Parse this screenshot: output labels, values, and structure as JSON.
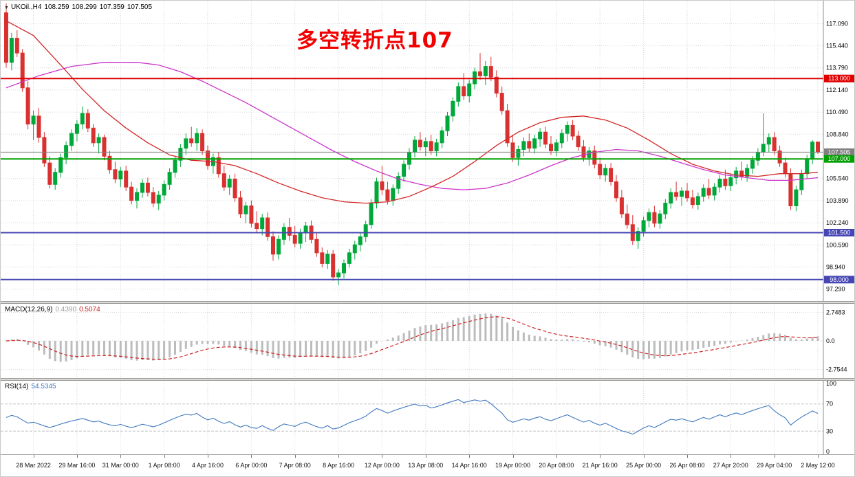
{
  "header": {
    "symbol": "UKOil.,H4",
    "open": "108.259",
    "high": "108.299",
    "low": "107.359",
    "close": "107.505"
  },
  "annotation": {
    "text": "多空转折点107",
    "color": "#f20000"
  },
  "colors": {
    "bull": "#00a83a",
    "bear": "#d93030",
    "grid": "#d6d6d6",
    "scale_line": "#8c8c8c",
    "macd_hist": "#bcbcbc",
    "macd_signal": "#d02020",
    "rsi_line": "#3e78be",
    "level_dash": "#c0c0c0"
  },
  "chart_data": {
    "type": "candlestick",
    "symbol": "UKOil.",
    "timeframe": "H4",
    "current_bar": {
      "open": 108.259,
      "high": 108.299,
      "low": 107.359,
      "close": 107.505
    },
    "price_range": [
      96.4,
      118.8
    ],
    "price_ticks": [
      "117.090",
      "115.440",
      "113.790",
      "112.140",
      "110.490",
      "108.840",
      "105.540",
      "103.890",
      "102.240",
      "100.590",
      "98.940",
      "97.290"
    ],
    "time_ticks": {
      "labels": [
        "28 Mar 2022",
        "29 Mar 16:00",
        "31 Mar 00:00",
        "1 Apr 08:00",
        "4 Apr 16:00",
        "6 Apr 00:00",
        "7 Apr 08:00",
        "8 Apr 16:00",
        "12 Apr 00:00",
        "13 Apr 08:00",
        "14 Apr 16:00",
        "19 Apr 00:00",
        "20 Apr 08:00",
        "21 Apr 16:00",
        "25 Apr 00:00",
        "26 Apr 08:00",
        "27 Apr 20:00",
        "29 Apr 04:00",
        "2 May 12:00"
      ],
      "candle_indices": [
        5,
        13,
        21,
        29,
        37,
        45,
        53,
        61,
        69,
        77,
        85,
        93,
        101,
        109,
        117,
        125,
        133,
        141,
        149
      ]
    },
    "horizontal_lines": [
      {
        "label": "113.000",
        "value": 113.0,
        "color": "#e00000",
        "line_width": 2
      },
      {
        "label": "101.500",
        "value": 101.5,
        "color": "#4646b4",
        "line_width": 2
      },
      {
        "label": "98.000",
        "value": 98.0,
        "color": "#4646b4",
        "line_width": 2
      },
      {
        "label": "107.505",
        "value": 107.505,
        "color": "#808080",
        "line_width": 1
      },
      {
        "label": "107.000",
        "value": 107.0,
        "color": "#00a000",
        "line_width": 2
      }
    ],
    "candles": [
      [
        117.9,
        118.6,
        113.8,
        114.2
      ],
      [
        114.2,
        116.4,
        113.6,
        116.0
      ],
      [
        116.0,
        116.6,
        114.6,
        114.9
      ],
      [
        114.9,
        115.2,
        112.0,
        112.3
      ],
      [
        112.3,
        112.8,
        109.2,
        109.6
      ],
      [
        109.6,
        110.6,
        108.4,
        110.2
      ],
      [
        110.2,
        110.8,
        108.2,
        108.6
      ],
      [
        108.6,
        109.0,
        106.4,
        106.7
      ],
      [
        106.7,
        107.2,
        104.8,
        105.1
      ],
      [
        105.1,
        106.3,
        104.7,
        106.0
      ],
      [
        106.0,
        107.4,
        105.6,
        107.1
      ],
      [
        107.1,
        108.3,
        106.6,
        108.0
      ],
      [
        108.0,
        109.2,
        107.6,
        108.9
      ],
      [
        108.9,
        109.9,
        108.3,
        109.6
      ],
      [
        109.6,
        110.9,
        109.2,
        110.4
      ],
      [
        110.4,
        110.7,
        109.0,
        109.3
      ],
      [
        109.3,
        109.6,
        107.9,
        108.2
      ],
      [
        108.2,
        108.9,
        107.4,
        108.6
      ],
      [
        108.6,
        108.8,
        106.9,
        107.2
      ],
      [
        107.2,
        107.6,
        105.9,
        106.2
      ],
      [
        106.2,
        106.8,
        105.2,
        105.5
      ],
      [
        105.5,
        106.4,
        104.9,
        106.1
      ],
      [
        106.1,
        106.5,
        104.6,
        104.9
      ],
      [
        104.9,
        105.3,
        103.6,
        103.9
      ],
      [
        103.9,
        104.8,
        103.3,
        104.5
      ],
      [
        104.5,
        105.5,
        104.1,
        105.2
      ],
      [
        105.2,
        105.6,
        104.2,
        104.5
      ],
      [
        104.5,
        104.9,
        103.4,
        103.7
      ],
      [
        103.7,
        104.6,
        103.2,
        104.3
      ],
      [
        104.3,
        105.4,
        103.9,
        105.1
      ],
      [
        105.1,
        106.3,
        104.7,
        106.0
      ],
      [
        106.0,
        107.2,
        105.6,
        106.9
      ],
      [
        106.9,
        108.1,
        106.4,
        107.8
      ],
      [
        107.8,
        108.9,
        107.3,
        108.5
      ],
      [
        108.5,
        109.4,
        107.9,
        108.2
      ],
      [
        108.2,
        109.3,
        107.6,
        108.9
      ],
      [
        108.9,
        109.2,
        107.3,
        107.6
      ],
      [
        107.6,
        108.0,
        106.2,
        106.5
      ],
      [
        106.5,
        107.4,
        105.9,
        107.1
      ],
      [
        107.1,
        107.5,
        105.6,
        105.9
      ],
      [
        105.9,
        106.5,
        104.6,
        104.9
      ],
      [
        104.9,
        105.8,
        104.3,
        105.5
      ],
      [
        105.5,
        105.9,
        103.8,
        104.1
      ],
      [
        104.1,
        104.6,
        102.6,
        102.9
      ],
      [
        102.9,
        103.8,
        102.2,
        103.5
      ],
      [
        103.5,
        103.9,
        101.9,
        102.2
      ],
      [
        102.2,
        103.1,
        101.5,
        101.8
      ],
      [
        101.8,
        102.9,
        101.3,
        102.6
      ],
      [
        102.6,
        103.0,
        100.9,
        101.2
      ],
      [
        101.2,
        101.6,
        99.4,
        99.9
      ],
      [
        99.9,
        101.3,
        99.5,
        101.0
      ],
      [
        101.0,
        102.2,
        100.6,
        101.9
      ],
      [
        101.9,
        102.6,
        100.9,
        101.3
      ],
      [
        101.3,
        102.0,
        100.4,
        100.7
      ],
      [
        100.7,
        101.8,
        100.3,
        101.5
      ],
      [
        101.5,
        102.3,
        100.8,
        102.0
      ],
      [
        102.0,
        102.4,
        100.7,
        101.0
      ],
      [
        101.0,
        101.5,
        99.7,
        100.0
      ],
      [
        100.0,
        100.4,
        98.9,
        99.2
      ],
      [
        99.2,
        100.2,
        98.8,
        99.9
      ],
      [
        99.9,
        100.2,
        97.9,
        98.2
      ],
      [
        98.2,
        98.8,
        97.6,
        98.5
      ],
      [
        98.5,
        99.5,
        98.1,
        99.2
      ],
      [
        99.2,
        100.3,
        98.9,
        100.0
      ],
      [
        100.0,
        100.9,
        99.5,
        100.6
      ],
      [
        100.6,
        101.5,
        100.1,
        101.2
      ],
      [
        101.2,
        102.4,
        100.8,
        102.1
      ],
      [
        102.1,
        104.0,
        101.8,
        103.7
      ],
      [
        103.7,
        105.6,
        103.3,
        105.3
      ],
      [
        105.3,
        106.5,
        104.3,
        104.7
      ],
      [
        104.7,
        105.3,
        103.6,
        103.9
      ],
      [
        103.9,
        105.1,
        103.5,
        104.8
      ],
      [
        104.8,
        106.0,
        104.4,
        105.7
      ],
      [
        105.7,
        106.9,
        105.3,
        106.6
      ],
      [
        106.6,
        107.8,
        106.2,
        107.5
      ],
      [
        107.5,
        108.7,
        107.1,
        108.4
      ],
      [
        108.4,
        109.0,
        107.6,
        107.9
      ],
      [
        107.9,
        108.6,
        107.2,
        108.3
      ],
      [
        108.3,
        108.8,
        107.3,
        107.6
      ],
      [
        107.6,
        108.5,
        107.2,
        108.2
      ],
      [
        108.2,
        109.4,
        107.8,
        109.1
      ],
      [
        109.1,
        110.5,
        108.7,
        110.2
      ],
      [
        110.2,
        111.6,
        109.8,
        111.3
      ],
      [
        111.3,
        112.7,
        110.9,
        112.4
      ],
      [
        112.4,
        113.4,
        111.4,
        111.7
      ],
      [
        111.7,
        112.9,
        111.2,
        112.6
      ],
      [
        112.6,
        113.8,
        112.2,
        113.5
      ],
      [
        113.5,
        114.9,
        112.9,
        113.2
      ],
      [
        113.2,
        114.3,
        112.5,
        113.9
      ],
      [
        113.9,
        114.6,
        112.8,
        113.1
      ],
      [
        113.1,
        113.6,
        111.6,
        111.9
      ],
      [
        111.9,
        112.4,
        110.3,
        110.6
      ],
      [
        110.6,
        111.1,
        107.9,
        108.2
      ],
      [
        108.2,
        108.8,
        106.8,
        107.1
      ],
      [
        107.1,
        108.0,
        106.5,
        107.7
      ],
      [
        107.7,
        108.6,
        107.2,
        108.3
      ],
      [
        108.3,
        108.9,
        107.5,
        107.8
      ],
      [
        107.8,
        108.8,
        107.4,
        108.5
      ],
      [
        108.5,
        109.3,
        107.9,
        109.0
      ],
      [
        109.0,
        109.4,
        107.8,
        108.1
      ],
      [
        108.1,
        108.7,
        107.3,
        107.6
      ],
      [
        107.6,
        108.5,
        107.2,
        108.2
      ],
      [
        108.2,
        109.2,
        107.8,
        108.9
      ],
      [
        108.9,
        109.8,
        108.3,
        109.5
      ],
      [
        109.5,
        109.9,
        108.4,
        108.7
      ],
      [
        108.7,
        109.1,
        107.6,
        107.9
      ],
      [
        107.9,
        108.4,
        106.8,
        107.1
      ],
      [
        107.1,
        107.9,
        106.5,
        107.6
      ],
      [
        107.6,
        108.0,
        106.3,
        106.6
      ],
      [
        106.6,
        107.1,
        105.5,
        105.8
      ],
      [
        105.8,
        106.6,
        105.3,
        106.3
      ],
      [
        106.3,
        106.7,
        105.0,
        105.3
      ],
      [
        105.3,
        105.8,
        103.8,
        104.1
      ],
      [
        104.1,
        104.7,
        102.6,
        102.9
      ],
      [
        102.9,
        103.6,
        101.8,
        102.1
      ],
      [
        102.1,
        102.8,
        100.6,
        100.9
      ],
      [
        100.9,
        101.9,
        100.3,
        101.6
      ],
      [
        101.6,
        102.7,
        101.2,
        102.4
      ],
      [
        102.4,
        103.3,
        101.9,
        103.0
      ],
      [
        103.0,
        103.5,
        101.9,
        102.2
      ],
      [
        102.2,
        103.2,
        101.8,
        102.9
      ],
      [
        102.9,
        104.0,
        102.5,
        103.7
      ],
      [
        103.7,
        104.8,
        103.3,
        104.5
      ],
      [
        104.5,
        105.3,
        103.9,
        104.2
      ],
      [
        104.2,
        104.9,
        103.5,
        104.6
      ],
      [
        104.6,
        105.2,
        103.8,
        104.1
      ],
      [
        104.1,
        104.7,
        103.3,
        103.6
      ],
      [
        103.6,
        104.5,
        103.2,
        104.2
      ],
      [
        104.2,
        105.1,
        103.8,
        104.8
      ],
      [
        104.8,
        105.5,
        104.0,
        104.3
      ],
      [
        104.3,
        105.2,
        103.9,
        104.9
      ],
      [
        104.9,
        105.8,
        104.5,
        105.5
      ],
      [
        105.5,
        106.2,
        104.7,
        105.0
      ],
      [
        105.0,
        105.9,
        104.6,
        105.6
      ],
      [
        105.6,
        106.4,
        105.1,
        106.1
      ],
      [
        106.1,
        106.8,
        105.4,
        105.7
      ],
      [
        105.7,
        106.6,
        105.3,
        106.3
      ],
      [
        106.3,
        107.2,
        105.9,
        106.9
      ],
      [
        106.9,
        107.8,
        106.5,
        107.5
      ],
      [
        107.5,
        110.4,
        107.2,
        108.1
      ],
      [
        108.1,
        108.9,
        107.5,
        108.6
      ],
      [
        108.6,
        109.0,
        107.3,
        107.6
      ],
      [
        107.6,
        108.0,
        106.4,
        106.7
      ],
      [
        106.7,
        107.1,
        105.6,
        105.9
      ],
      [
        105.9,
        106.3,
        103.2,
        103.5
      ],
      [
        103.5,
        105.0,
        103.1,
        104.7
      ],
      [
        104.7,
        106.2,
        104.3,
        105.9
      ],
      [
        105.9,
        107.3,
        105.5,
        107.0
      ],
      [
        107.0,
        108.4,
        106.6,
        108.26
      ],
      [
        108.259,
        108.299,
        107.359,
        107.505
      ]
    ],
    "moving_averages": [
      {
        "name": "ma-slow",
        "color": "#cc33cc",
        "points": [
          [
            0,
            112.3
          ],
          [
            6,
            113.2
          ],
          [
            12,
            113.9
          ],
          [
            18,
            114.2
          ],
          [
            24,
            114.2
          ],
          [
            28,
            114.0
          ],
          [
            32,
            113.5
          ],
          [
            36,
            112.8
          ],
          [
            40,
            112.0
          ],
          [
            44,
            111.2
          ],
          [
            48,
            110.3
          ],
          [
            52,
            109.4
          ],
          [
            56,
            108.5
          ],
          [
            60,
            107.6
          ],
          [
            64,
            106.8
          ],
          [
            68,
            106.1
          ],
          [
            72,
            105.5
          ],
          [
            76,
            105.1
          ],
          [
            80,
            104.8
          ],
          [
            84,
            104.7
          ],
          [
            88,
            104.8
          ],
          [
            92,
            105.2
          ],
          [
            96,
            105.8
          ],
          [
            100,
            106.5
          ],
          [
            104,
            107.1
          ],
          [
            108,
            107.5
          ],
          [
            112,
            107.7
          ],
          [
            116,
            107.6
          ],
          [
            120,
            107.2
          ],
          [
            124,
            106.7
          ],
          [
            128,
            106.2
          ],
          [
            132,
            105.8
          ],
          [
            136,
            105.6
          ],
          [
            140,
            105.4
          ],
          [
            144,
            105.4
          ],
          [
            149,
            105.6
          ]
        ]
      },
      {
        "name": "ma-fast",
        "color": "#d42626",
        "points": [
          [
            0,
            117.3
          ],
          [
            5,
            116.2
          ],
          [
            10,
            114.0
          ],
          [
            14,
            112.2
          ],
          [
            18,
            110.6
          ],
          [
            22,
            109.3
          ],
          [
            26,
            108.2
          ],
          [
            30,
            107.3
          ],
          [
            34,
            106.9
          ],
          [
            38,
            106.8
          ],
          [
            42,
            106.5
          ],
          [
            46,
            105.9
          ],
          [
            50,
            105.2
          ],
          [
            54,
            104.6
          ],
          [
            58,
            104.1
          ],
          [
            62,
            103.8
          ],
          [
            66,
            103.7
          ],
          [
            70,
            103.8
          ],
          [
            74,
            104.2
          ],
          [
            78,
            104.9
          ],
          [
            82,
            105.7
          ],
          [
            86,
            106.8
          ],
          [
            90,
            108.0
          ],
          [
            94,
            109.0
          ],
          [
            98,
            109.7
          ],
          [
            102,
            110.1
          ],
          [
            106,
            110.2
          ],
          [
            110,
            109.9
          ],
          [
            114,
            109.3
          ],
          [
            118,
            108.4
          ],
          [
            122,
            107.4
          ],
          [
            126,
            106.6
          ],
          [
            130,
            106.1
          ],
          [
            134,
            105.8
          ],
          [
            138,
            105.7
          ],
          [
            142,
            105.9
          ],
          [
            146,
            105.9
          ],
          [
            149,
            106.0
          ]
        ]
      }
    ],
    "indicators": {
      "macd": {
        "label": "MACD(12,26,9)",
        "value_main": "0.4390",
        "value_signal": "0.5074",
        "axis": [
          {
            "text": "2.7483",
            "value": 2.7483
          },
          {
            "text": "0.0",
            "value": 0
          },
          {
            "text": "-2.7544",
            "value": -2.7544
          }
        ],
        "y_range": [
          -3.3,
          3.3
        ],
        "params": [
          12,
          26,
          9
        ]
      },
      "rsi": {
        "label": "RSI(14)",
        "value": "54.5345",
        "axis": [
          {
            "text": "100",
            "value": 100
          },
          {
            "text": "70",
            "value": 70
          },
          {
            "text": "30",
            "value": 30
          },
          {
            "text": "0",
            "value": 0
          }
        ],
        "levels": [
          70,
          30
        ],
        "y_range": [
          0,
          100
        ],
        "period": 14
      }
    }
  }
}
